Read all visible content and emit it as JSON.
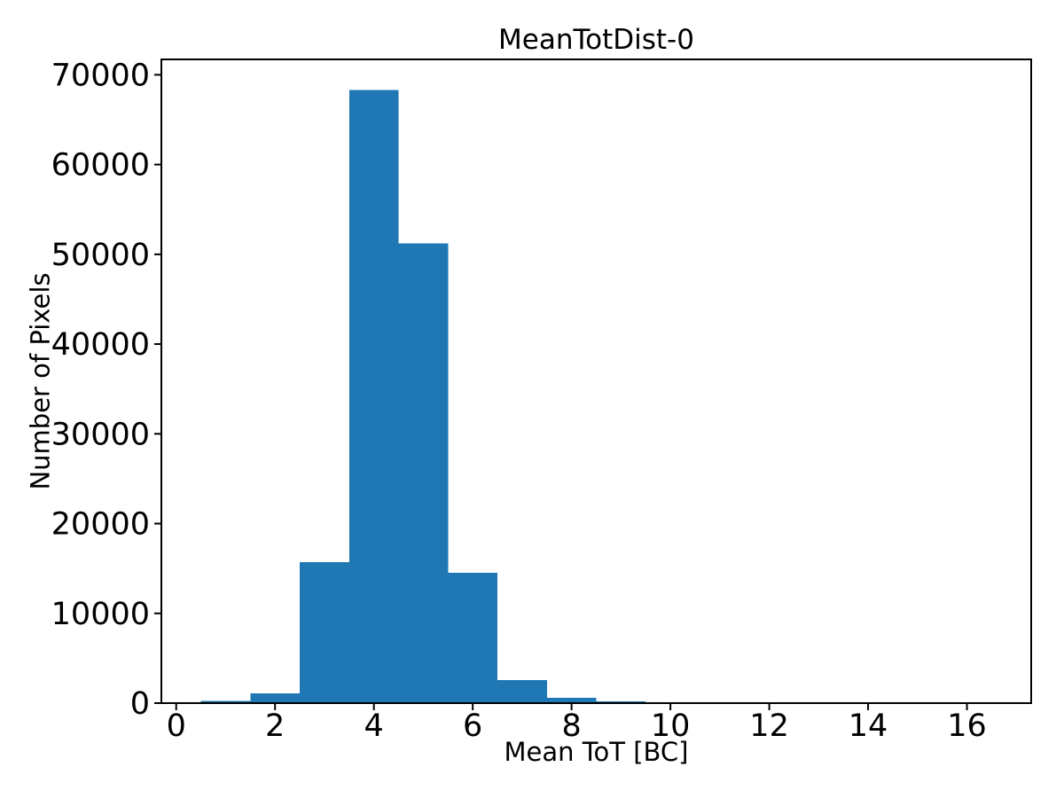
{
  "figure": {
    "background_color": "#ffffff",
    "text_color": "#000000"
  },
  "chart_data": {
    "type": "bar",
    "subtype": "histogram",
    "title": "MeanTotDist-0",
    "xlabel": "Mean ToT [BC]",
    "ylabel": "Number of Pixels",
    "bar_color": "#1f77b4",
    "axis_color": "#000000",
    "grid": false,
    "legend": false,
    "bin_edges": [
      0.5,
      1.5,
      2.5,
      3.5,
      4.5,
      5.5,
      6.5,
      7.5,
      8.5,
      9.5,
      10.5,
      11.5,
      12.5,
      13.5,
      14.5,
      15.5,
      16.5
    ],
    "bin_centers": [
      1,
      2,
      3,
      4,
      5,
      6,
      7,
      8,
      9,
      10,
      11,
      12,
      13,
      14,
      15,
      16
    ],
    "values": [
      250,
      1100,
      15700,
      68300,
      51200,
      14500,
      2550,
      600,
      220,
      0,
      0,
      0,
      0,
      0,
      0,
      0
    ],
    "xlim": [
      -0.3,
      17.3
    ],
    "ylim": [
      0,
      71715
    ],
    "xticks": [
      0,
      2,
      4,
      6,
      8,
      10,
      12,
      14,
      16
    ],
    "yticks": [
      0,
      10000,
      20000,
      30000,
      40000,
      50000,
      60000,
      70000
    ]
  }
}
